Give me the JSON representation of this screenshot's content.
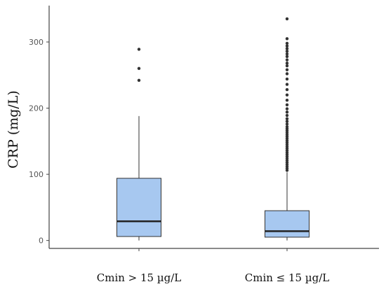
{
  "chart_data": {
    "type": "box",
    "title": "",
    "xlabel": "",
    "ylabel": "CRP (mg/L)",
    "ylim": [
      -12,
      355
    ],
    "yticks": [
      0,
      100,
      200,
      300
    ],
    "ytick_labels": [
      "0",
      "100",
      "200",
      "300"
    ],
    "grid": false,
    "box_color": "#a7c8f0",
    "edge_color": "#333333",
    "categories": [
      "Cmin > 15 µg/L",
      "Cmin ≤ 15 µg/L"
    ],
    "boxes": [
      {
        "category": "Cmin > 15 µg/L",
        "q1": 6,
        "median": 29,
        "q3": 94,
        "whisker_low": 0,
        "whisker_high": 188,
        "outliers": [
          242,
          260,
          289
        ]
      },
      {
        "category": "Cmin ≤ 15 µg/L",
        "q1": 5,
        "median": 14,
        "q3": 45,
        "whisker_low": 0,
        "whisker_high": 103,
        "outliers": [
          106,
          109,
          112,
          115,
          118,
          121,
          124,
          127,
          130,
          133,
          136,
          139,
          142,
          145,
          148,
          151,
          154,
          157,
          160,
          163,
          166,
          169,
          172,
          176,
          180,
          184,
          189,
          194,
          199,
          205,
          212,
          220,
          228,
          236,
          244,
          252,
          258,
          264,
          268,
          273,
          278,
          282,
          286,
          290,
          294,
          298,
          305,
          335
        ]
      }
    ]
  }
}
